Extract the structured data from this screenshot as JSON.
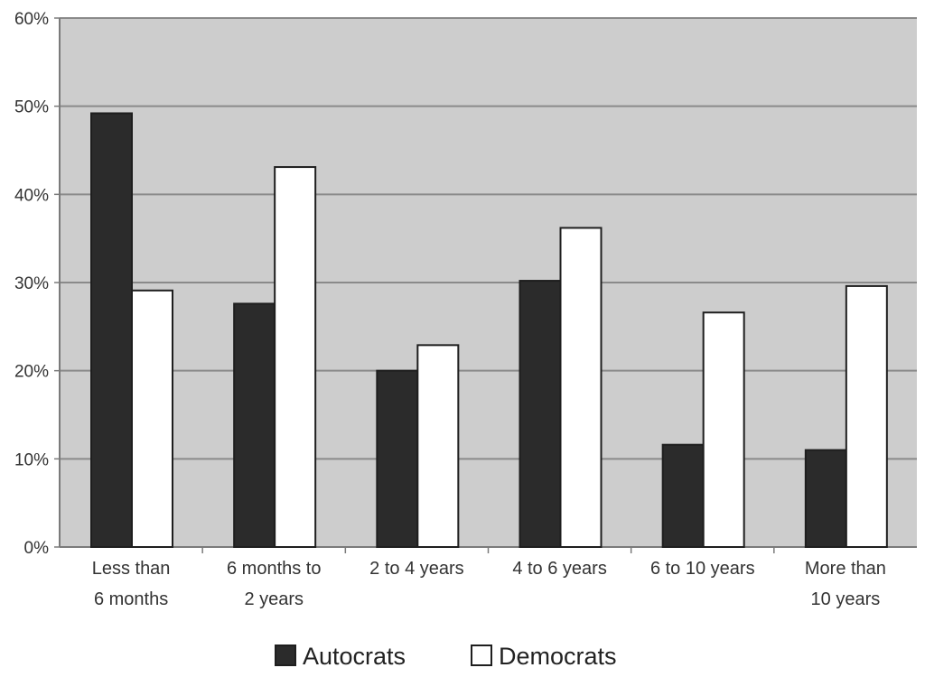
{
  "chart_data": {
    "type": "bar",
    "title": "",
    "xlabel": "",
    "ylabel": "",
    "categories": [
      [
        "Less than",
        "6 months"
      ],
      [
        "6 months to",
        "2 years"
      ],
      [
        "2 to 4 years"
      ],
      [
        "4 to 6 years"
      ],
      [
        "6 to 10 years"
      ],
      [
        "More than",
        "10 years"
      ]
    ],
    "series": [
      {
        "name": "Autocrats",
        "values": [
          49.2,
          27.6,
          20.0,
          30.2,
          11.6,
          11.0
        ]
      },
      {
        "name": "Democrats",
        "values": [
          29.1,
          43.1,
          22.9,
          36.2,
          26.6,
          29.6
        ]
      }
    ],
    "ylim": [
      0,
      60
    ],
    "yticks": [
      0,
      10,
      20,
      30,
      40,
      50,
      60
    ],
    "ytick_labels": [
      "0%",
      "10%",
      "20%",
      "30%",
      "40%",
      "50%",
      "60%"
    ],
    "grid": true,
    "legend_position": "bottom-center"
  },
  "colors": {
    "plot_background": "#cdcdcd",
    "gridline": "#8a8a8a",
    "axis": "#7a7a7a",
    "series": [
      "#2b2b2b",
      "#ffffff"
    ],
    "bar_outline": "#1e1e1e"
  }
}
